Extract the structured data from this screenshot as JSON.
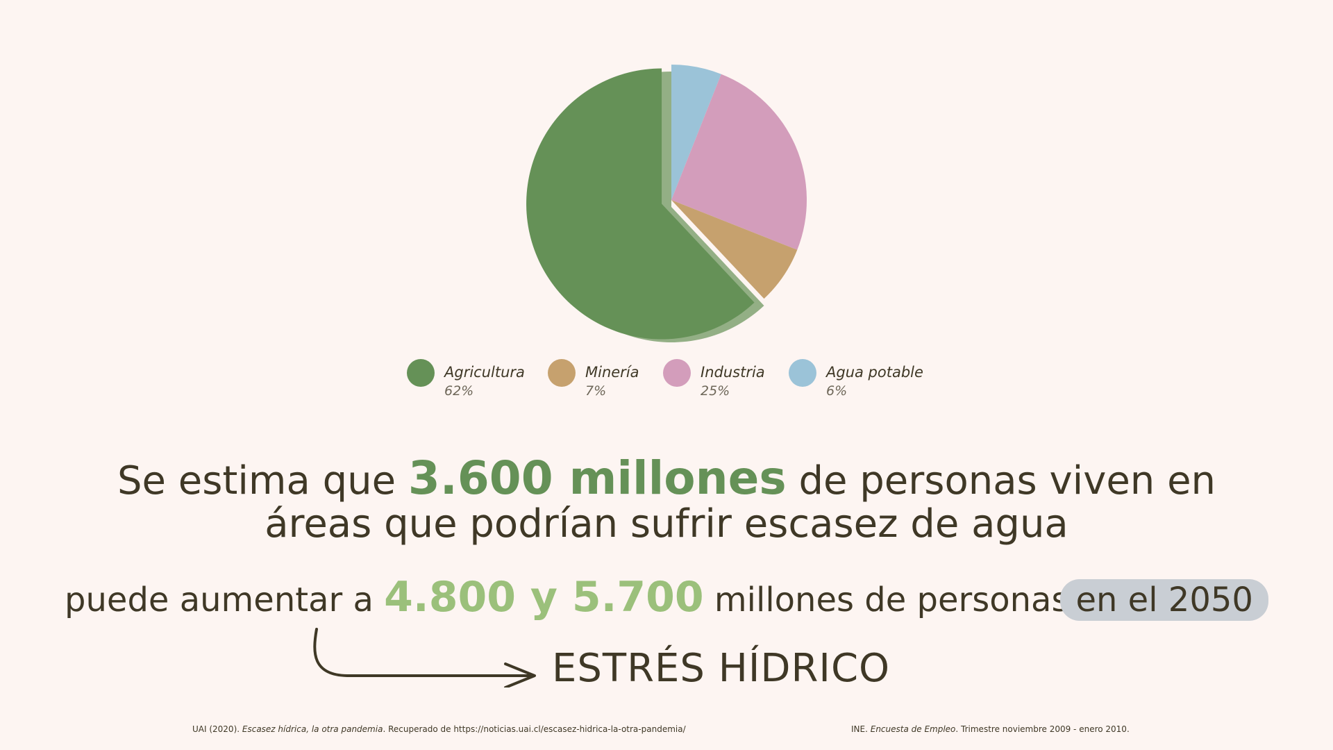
{
  "chart_data": {
    "type": "pie",
    "slices": [
      {
        "label": "Agricultura",
        "value": 62,
        "display": "62%",
        "color": "#659157"
      },
      {
        "label": "Minería",
        "value": 7,
        "display": "7%",
        "color": "#c6a16e"
      },
      {
        "label": "Industria",
        "value": 25,
        "display": "25%",
        "color": "#d39dbb"
      },
      {
        "label": "Agua potable",
        "value": 6,
        "display": "6%",
        "color": "#9bc3d8"
      }
    ],
    "legend_position": "bottom",
    "exploded": "Agricultura"
  },
  "headline": {
    "part1": "Se estima que ",
    "highlight": "3.600 millones",
    "part2": " de personas viven en",
    "line2": "áreas que podrían sufrir escasez de agua"
  },
  "projection": {
    "part1": "puede aumentar a ",
    "highlight": "4.800 y 5.700",
    "part2": " millones de personas",
    "pill": "en el 2050"
  },
  "conclusion": "ESTRÉS HÍDRICO",
  "references": {
    "ref1_a": "UAI (2020). ",
    "ref1_title": "Escasez hídrica, la otra pandemia",
    "ref1_b": ". Recuperado de https://noticias.uai.cl/escasez-hidrica-la-otra-pandemia/",
    "ref2_a": "INE. ",
    "ref2_title": "Encuesta de Empleo",
    "ref2_b": ". Trimestre noviembre 2009 - enero 2010."
  },
  "colors": {
    "background": "#fdf5f2",
    "text": "#3f3826",
    "accent_green": "#659157",
    "accent_light_green": "#9bc07b",
    "pill": "#c9ced4"
  }
}
